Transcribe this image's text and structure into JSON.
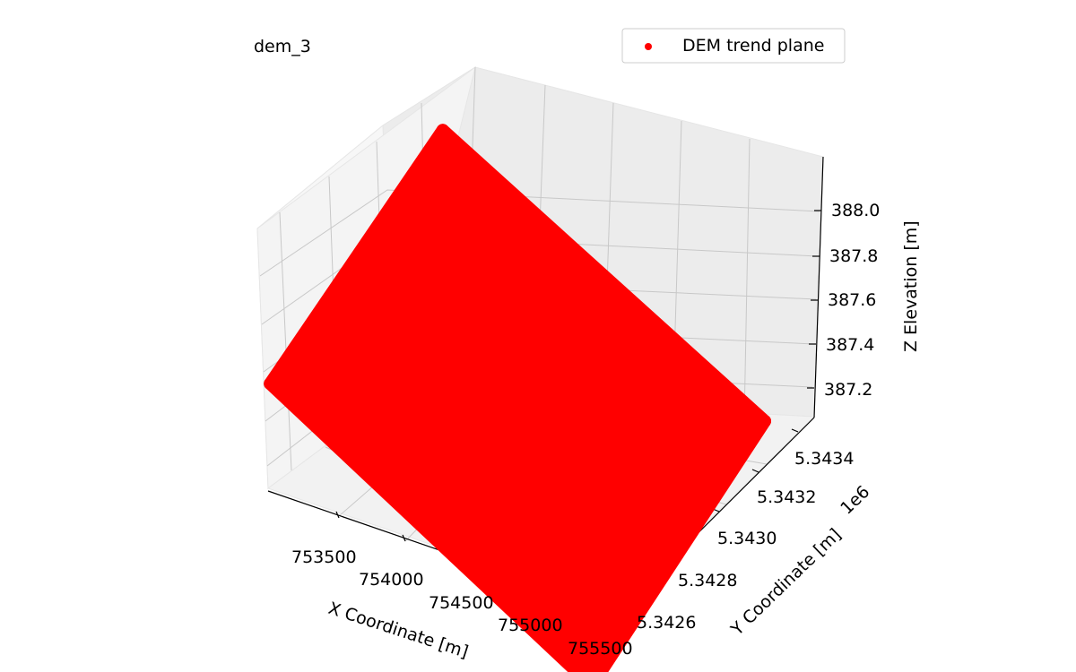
{
  "chart_data": {
    "type": "scatter",
    "title": "dem_3",
    "xlabel": "X Coordinate [m]",
    "ylabel": "Y Coordinate [m]",
    "zlabel": "Z Elevation [m]",
    "y_offset_label": "1e6",
    "x_ticks": [
      "753500",
      "754000",
      "754500",
      "755000",
      "755500"
    ],
    "y_ticks": [
      "5.3426",
      "5.3428",
      "5.3430",
      "5.3432",
      "5.3434"
    ],
    "z_ticks": [
      "387.2",
      "387.4",
      "387.6",
      "387.8",
      "388.0"
    ],
    "legend": {
      "label": "DEM trend plane",
      "placement": "top-right"
    },
    "grid": true,
    "series": [
      {
        "name": "DEM trend plane",
        "color": "#ff0000",
        "corners": [
          {
            "x": 753100,
            "y": 5343400,
            "z": 388.1
          },
          {
            "x": 753100,
            "y": 5342550,
            "z": 387.75
          },
          {
            "x": 755500,
            "y": 5342550,
            "z": 386.9
          },
          {
            "x": 755500,
            "y": 5343400,
            "z": 387.3
          }
        ]
      }
    ]
  }
}
